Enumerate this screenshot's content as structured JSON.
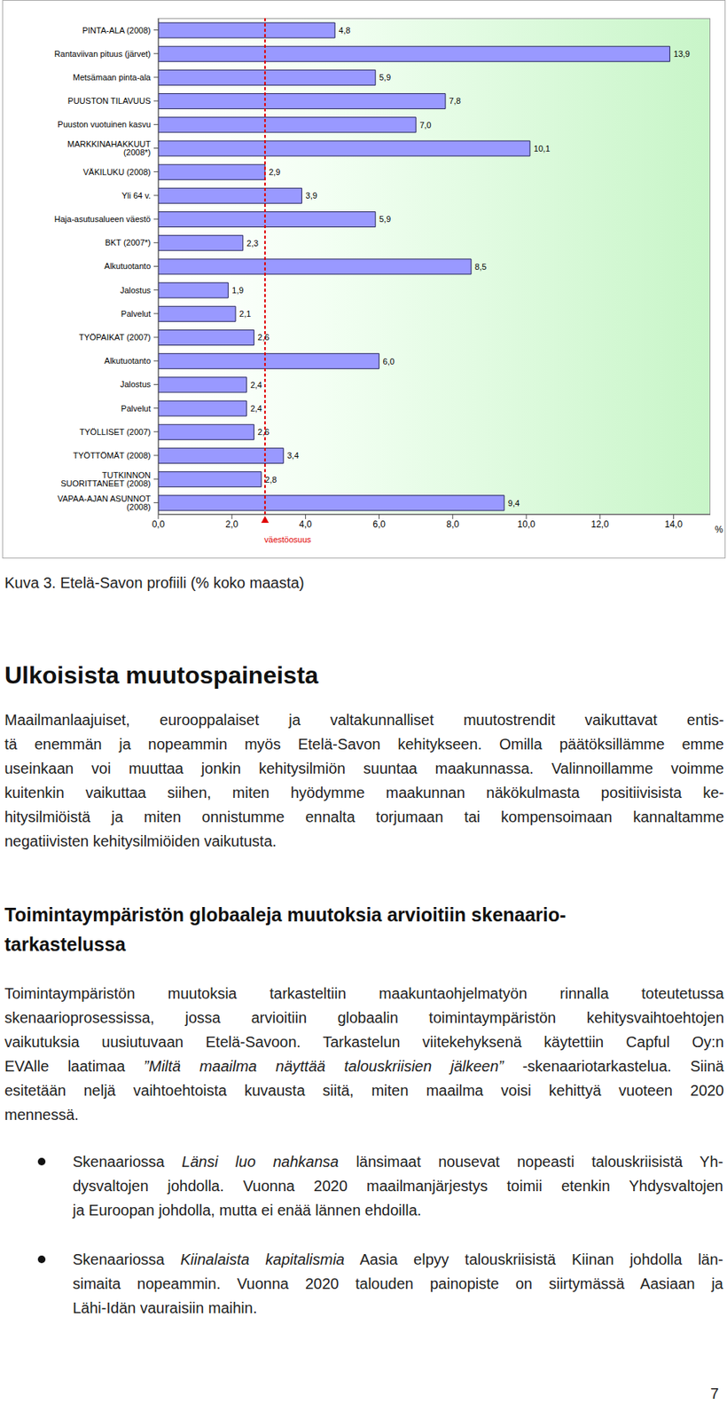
{
  "chart_data": {
    "type": "bar",
    "orientation": "horizontal",
    "categories": [
      "PINTA-ALA (2008)",
      "Rantaviivan pituus (järvet)",
      "Metsämaan pinta-ala",
      "PUUSTON TILAVUUS",
      "Puuston vuotuinen kasvu",
      "MARKKINAHAKKUUT (2008*)",
      "VÄKILUKU (2008)",
      "Yli 64 v.",
      "Haja-asutusalueen väestö",
      "BKT (2007*)",
      "Alkutuotanto",
      "Jalostus",
      "Palvelut",
      "TYÖPAIKAT (2007)",
      "Alkutuotanto",
      "Jalostus",
      "Palvelut",
      "TYÖLLISET (2007)",
      "TYÖTTÖMÄT (2008)",
      "TUTKINNON SUORITTANEET (2008)",
      "VAPAA-AJAN ASUNNOT (2008)"
    ],
    "values": [
      4.8,
      13.9,
      5.9,
      7.8,
      7.0,
      10.1,
      2.9,
      3.9,
      5.9,
      2.3,
      8.5,
      1.9,
      2.1,
      2.6,
      6.0,
      2.4,
      2.4,
      2.6,
      3.4,
      2.8,
      9.4
    ],
    "value_labels": [
      "4,8",
      "13,9",
      "5,9",
      "7,8",
      "7,0",
      "10,1",
      "2,9",
      "3,9",
      "5,9",
      "2,3",
      "8,5",
      "1,9",
      "2,1",
      "2,6",
      "6,0",
      "2,4",
      "2,4",
      "2,6",
      "3,4",
      "2,8",
      "9,4"
    ],
    "color": "#9999ff",
    "data_labels": true,
    "grid": false,
    "xlim": [
      0,
      15
    ],
    "xticks": [
      {
        "value": 0,
        "label": "0,0"
      },
      {
        "value": 2,
        "label": "2,0"
      },
      {
        "value": 4,
        "label": "4,0"
      },
      {
        "value": 6,
        "label": "6,0"
      },
      {
        "value": 8,
        "label": "8,0"
      },
      {
        "value": 10,
        "label": "10,0"
      },
      {
        "value": 12,
        "label": "12,0"
      },
      {
        "value": 14,
        "label": "14,0"
      }
    ],
    "unit_label": "%",
    "reference_line": {
      "value": 2.9,
      "label": "väestöosuus",
      "color": "#e00000"
    }
  },
  "caption": "Kuva 3. Etelä-Savon profiili (% koko maasta)",
  "sections": [
    {
      "heading": [
        "Ulkoisista muutospaineista"
      ],
      "paragraph": [
        "Maailmanlaajuiset, eurooppalaiset ja valtakunnalliset muutostrendit vaikuttavat entis-",
        "tä enemmän ja nopeammin myös Etelä-Savon kehitykseen. Omilla päätöksillämme emme",
        "useinkaan voi muuttaa jonkin kehitysilmiön suuntaa maakunnassa. Valinnoillamme voimme",
        "kuitenkin vaikuttaa siihen, miten hyödymme maakunnan näkökulmasta positiivisista ke-",
        "hitysilmiöistä ja miten onnistumme ennalta torjumaan tai kompensoimaan kannaltamme",
        "negatiivisten kehitysilmiöiden vaikutusta."
      ]
    },
    {
      "heading": [
        "Toimintaympäristön globaaleja muutoksia arvioitiin skenaario-",
        "tarkastelussa"
      ],
      "paragraph": [
        "Toimintaympäristön muutoksia tarkasteltiin maakuntaohjelmatyön rinnalla toteutetussa",
        "skenaarioprosessissa, jossa arvioitiin globaalin toimintaympäristön kehitysvaihtoehtojen",
        "vaikutuksia uusiutuvaan Etelä-Savoon. Tarkastelun viitekehyksenä käytettiin Capful Oy:n",
        [
          {
            "text": "EVAlle laatimaa "
          },
          {
            "text": "”Miltä maailma näyttää talouskriisien jälkeen”",
            "em": true
          },
          {
            "text": " -skenaariotarkastelua. Siinä"
          }
        ],
        "esitetään neljä vaihtoehtoista kuvausta siitä, miten maailma voisi kehittyä vuoteen 2020",
        "mennessä."
      ],
      "bullets": [
        [
          [
            {
              "text": "Skenaariossa "
            },
            {
              "text": "Länsi luo nahkansa",
              "em": true
            },
            {
              "text": " länsimaat nousevat nopeasti talouskriisistä Yh-"
            }
          ],
          "dysvaltojen johdolla. Vuonna 2020 maailmanjärjestys toimii etenkin Yhdysvaltojen",
          "ja Euroopan johdolla, mutta ei enää lännen ehdoilla."
        ],
        [
          [
            {
              "text": "Skenaariossa "
            },
            {
              "text": "Kiinalaista kapitalismia",
              "em": true
            },
            {
              "text": " Aasia elpyy talouskriisistä Kiinan johdolla län-"
            }
          ],
          "simaita nopeammin. Vuonna 2020 talouden painopiste on siirtymässä Aasiaan ja",
          "Lähi-Idän vauraisiin maihin."
        ]
      ]
    }
  ],
  "page_number": 7
}
